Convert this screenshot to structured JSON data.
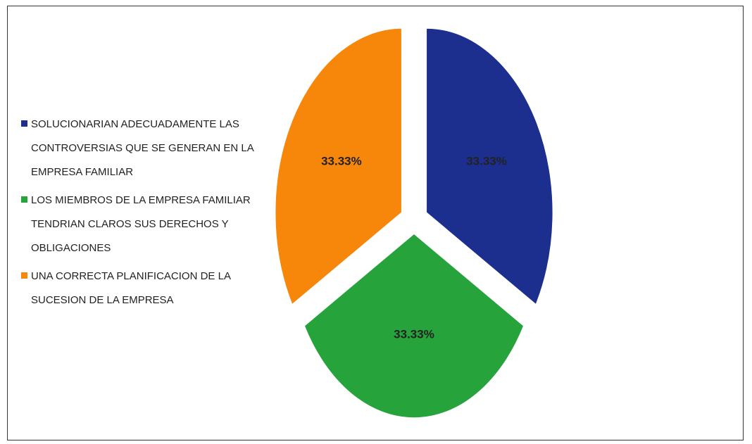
{
  "chart_data": {
    "type": "pie",
    "categories": [
      "SOLUCIONARIAN ADECUADAMENTE LAS CONTROVERSIAS QUE SE GENERAN EN LA EMPRESA FAMILIAR",
      "LOS MIEMBROS DE LA EMPRESA FAMILIAR TENDRIAN CLAROS SUS DERECHOS Y OBLIGACIONES",
      "UNA CORRECTA PLANIFICACION DE LA SUCESION DE LA EMPRESA"
    ],
    "values": [
      33.33,
      33.33,
      33.33
    ],
    "value_labels": [
      "33.33%",
      "33.33%",
      "33.33%"
    ],
    "colors": [
      "#1c2f8f",
      "#27a33c",
      "#f7870a"
    ],
    "legend": "left"
  }
}
